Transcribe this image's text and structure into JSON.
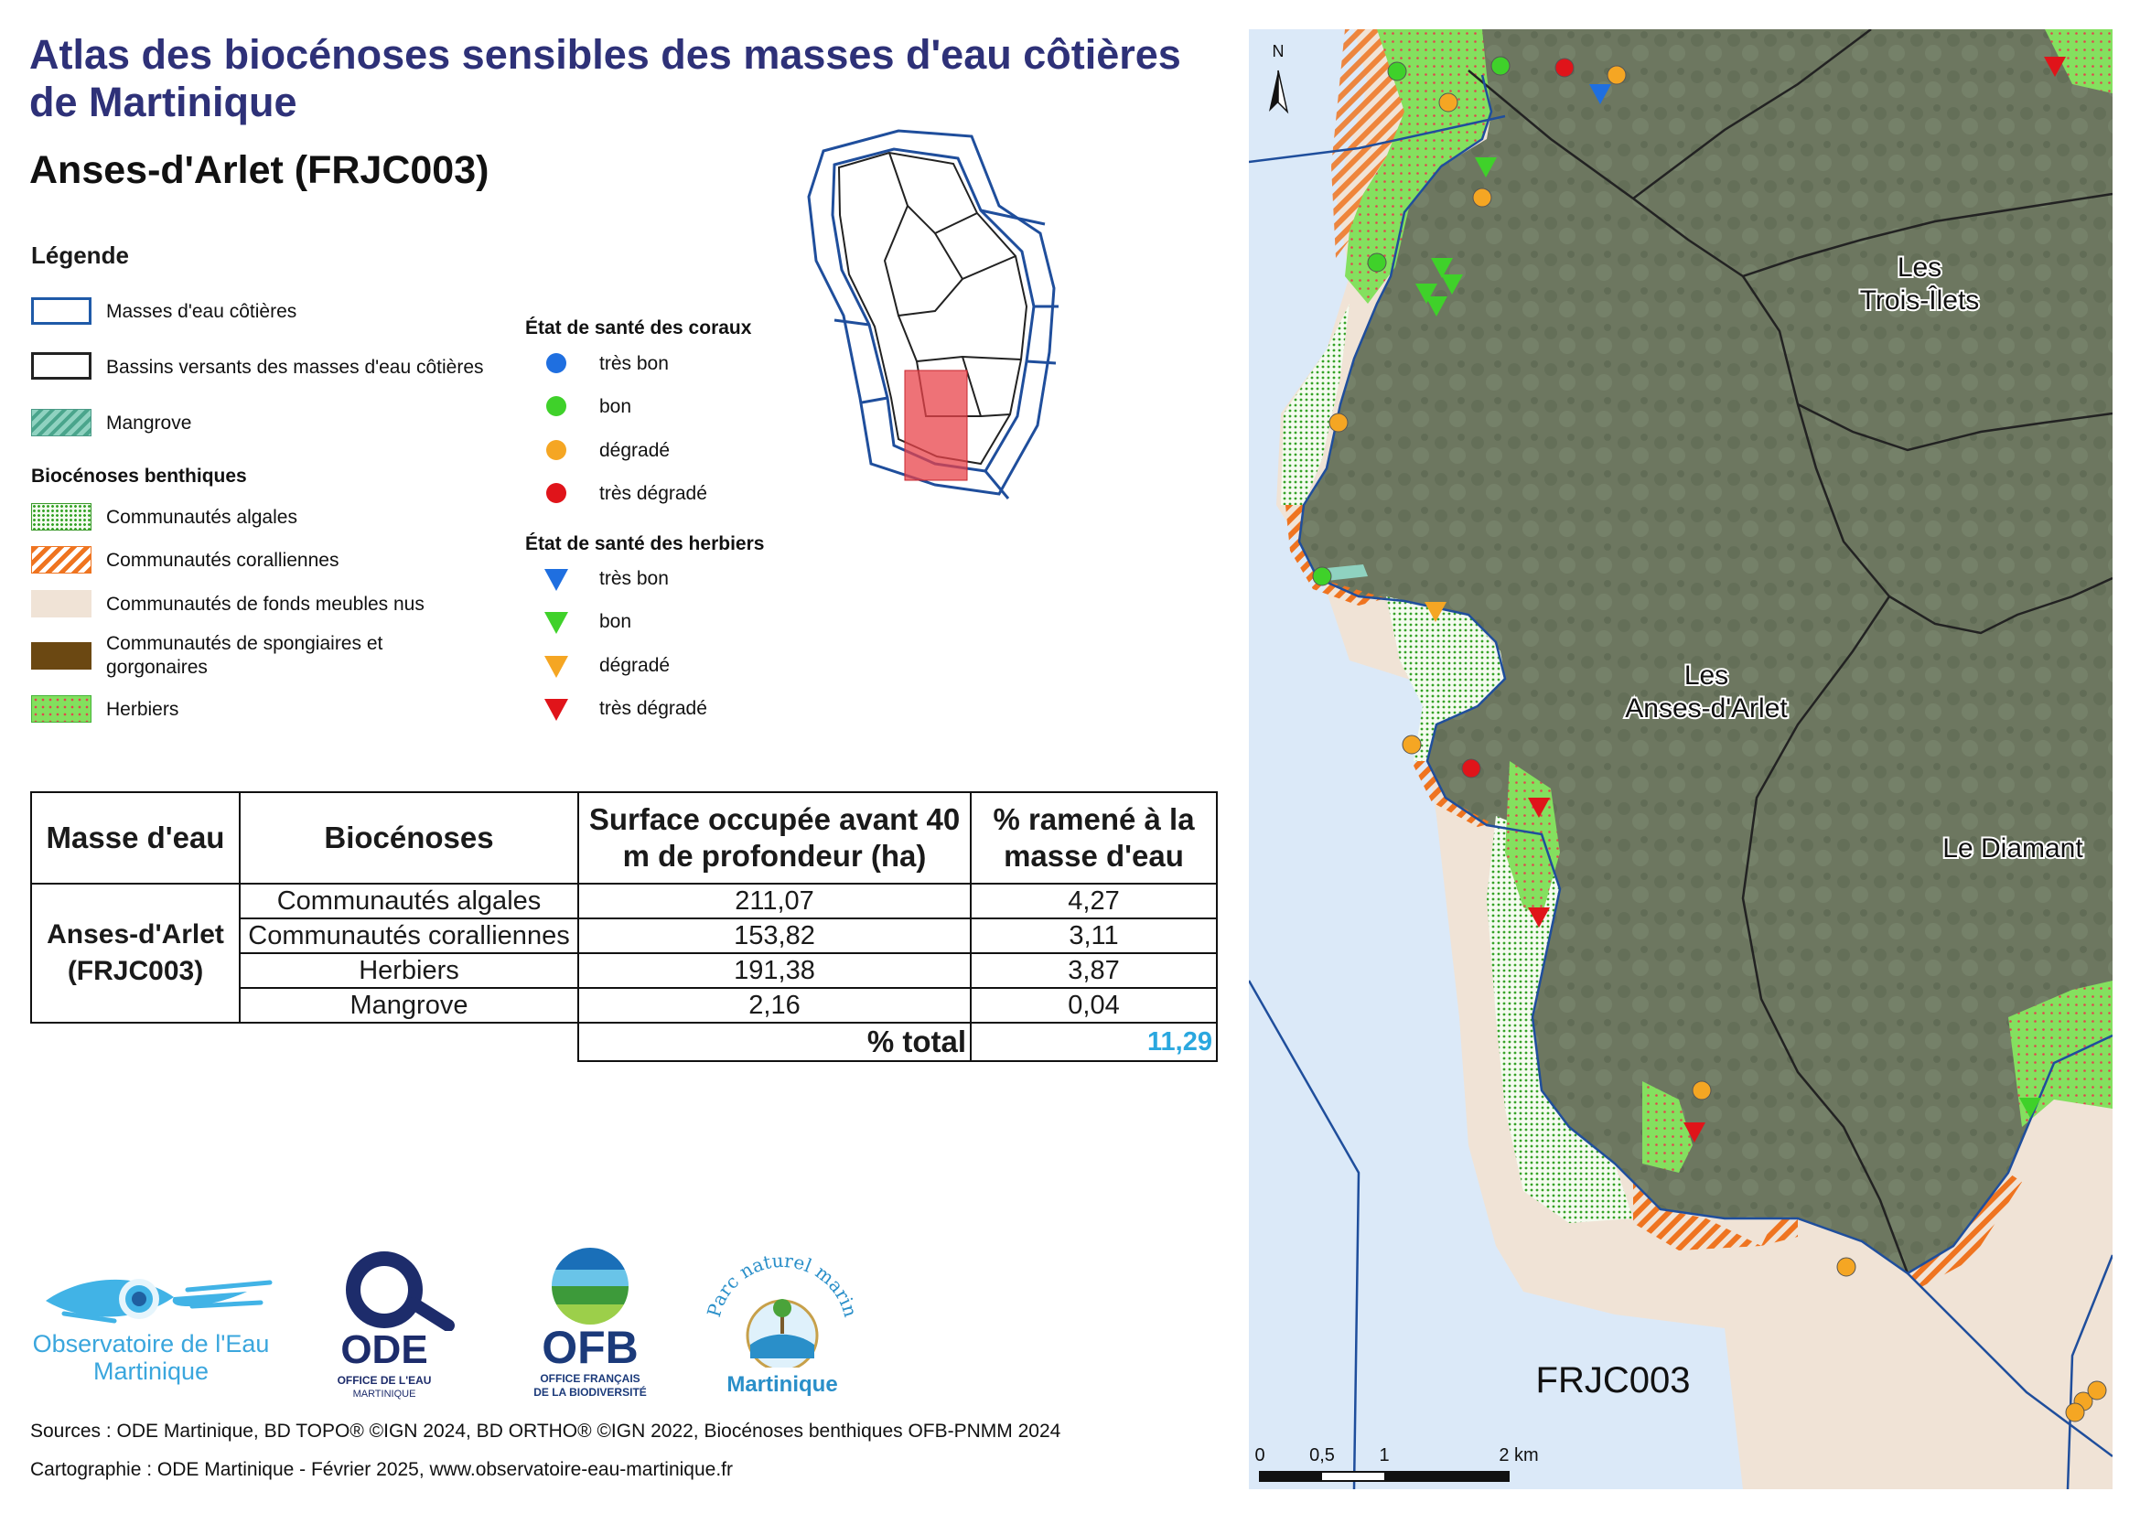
{
  "header": {
    "title": "Atlas des biocénoses sensibles des masses d'eau côtières de Martinique",
    "subtitle": "Anses-d'Arlet (FRJC003)"
  },
  "legend": {
    "title": "Légende",
    "boundaries": [
      {
        "label": "Masses d'eau côtières"
      },
      {
        "label": "Bassins versants des masses d'eau côtières"
      },
      {
        "label": "Mangrove"
      }
    ],
    "benthic_title": "Biocénoses benthiques",
    "benthic": [
      {
        "label": "Communautés algales"
      },
      {
        "label": "Communautés coralliennes"
      },
      {
        "label": "Communautés de fonds meubles nus"
      },
      {
        "label": "Communautés de spongiaires et gorgonaires"
      },
      {
        "label": "Herbiers"
      }
    ],
    "coral_title": "État de santé des coraux",
    "coral": [
      {
        "label": "très bon",
        "color": "#1f6fe0"
      },
      {
        "label": "bon",
        "color": "#3fd12a"
      },
      {
        "label": "dégradé",
        "color": "#f5a623"
      },
      {
        "label": "très dégradé",
        "color": "#e0141a"
      }
    ],
    "seagrass_title": "État de santé des herbiers",
    "seagrass": [
      {
        "label": "très bon",
        "color": "#1f6fe0"
      },
      {
        "label": "bon",
        "color": "#3fd12a"
      },
      {
        "label": "dégradé",
        "color": "#f5a623"
      },
      {
        "label": "très dégradé",
        "color": "#e0141a"
      }
    ]
  },
  "table": {
    "headers": [
      "Masse d'eau",
      "Biocénoses",
      "Surface occupée avant 40 m de profondeur (ha)",
      "% ramené à la masse d'eau"
    ],
    "masse_line1": "Anses-d'Arlet",
    "masse_line2": "(FRJC003)",
    "rows": [
      {
        "biocenose": "Communautés algales",
        "surface": "211,07",
        "pct": "4,27"
      },
      {
        "biocenose": "Communautés coralliennes",
        "surface": "153,82",
        "pct": "3,11"
      },
      {
        "biocenose": "Herbiers",
        "surface": "191,38",
        "pct": "3,87"
      },
      {
        "biocenose": "Mangrove",
        "surface": "2,16",
        "pct": "0,04"
      }
    ],
    "total_label": "% total",
    "total_value": "11,29"
  },
  "logos": {
    "observatoire_line1": "Observatoire de l'Eau",
    "observatoire_line2": "Martinique",
    "ode_text": "ODE",
    "ode_sub1": "OFFICE DE L'EAU",
    "ode_sub2": "MARTINIQUE",
    "ofb_text": "OFB",
    "ofb_sub1": "OFFICE FRANÇAIS",
    "ofb_sub2": "DE LA BIODIVERSITÉ",
    "parc_arc": "Parc naturel marin",
    "parc_name": "Martinique"
  },
  "footer": {
    "sources": "Sources : ODE Martinique, BD TOPO® ©IGN 2024, BD ORTHO® ©IGN 2022, Biocénoses benthiques OFB-PNMM 2024",
    "cartographie": "Cartographie : ODE Martinique - Février 2025, www.observatoire-eau-martinique.fr"
  },
  "map": {
    "north_label": "N",
    "places": [
      "Les",
      "Trois-Îlets",
      "Les",
      "Anses-d'Arlet",
      "Le Diamant"
    ],
    "water_body_label": "FRJC003",
    "scale_labels": [
      "0",
      "0,5",
      "1",
      "2 km"
    ],
    "colors": {
      "sea": "#dbe9f8",
      "land": "#6f7a62",
      "coast_line": "#1f4e9c",
      "soft_bottom": "#f0e3d6"
    }
  }
}
